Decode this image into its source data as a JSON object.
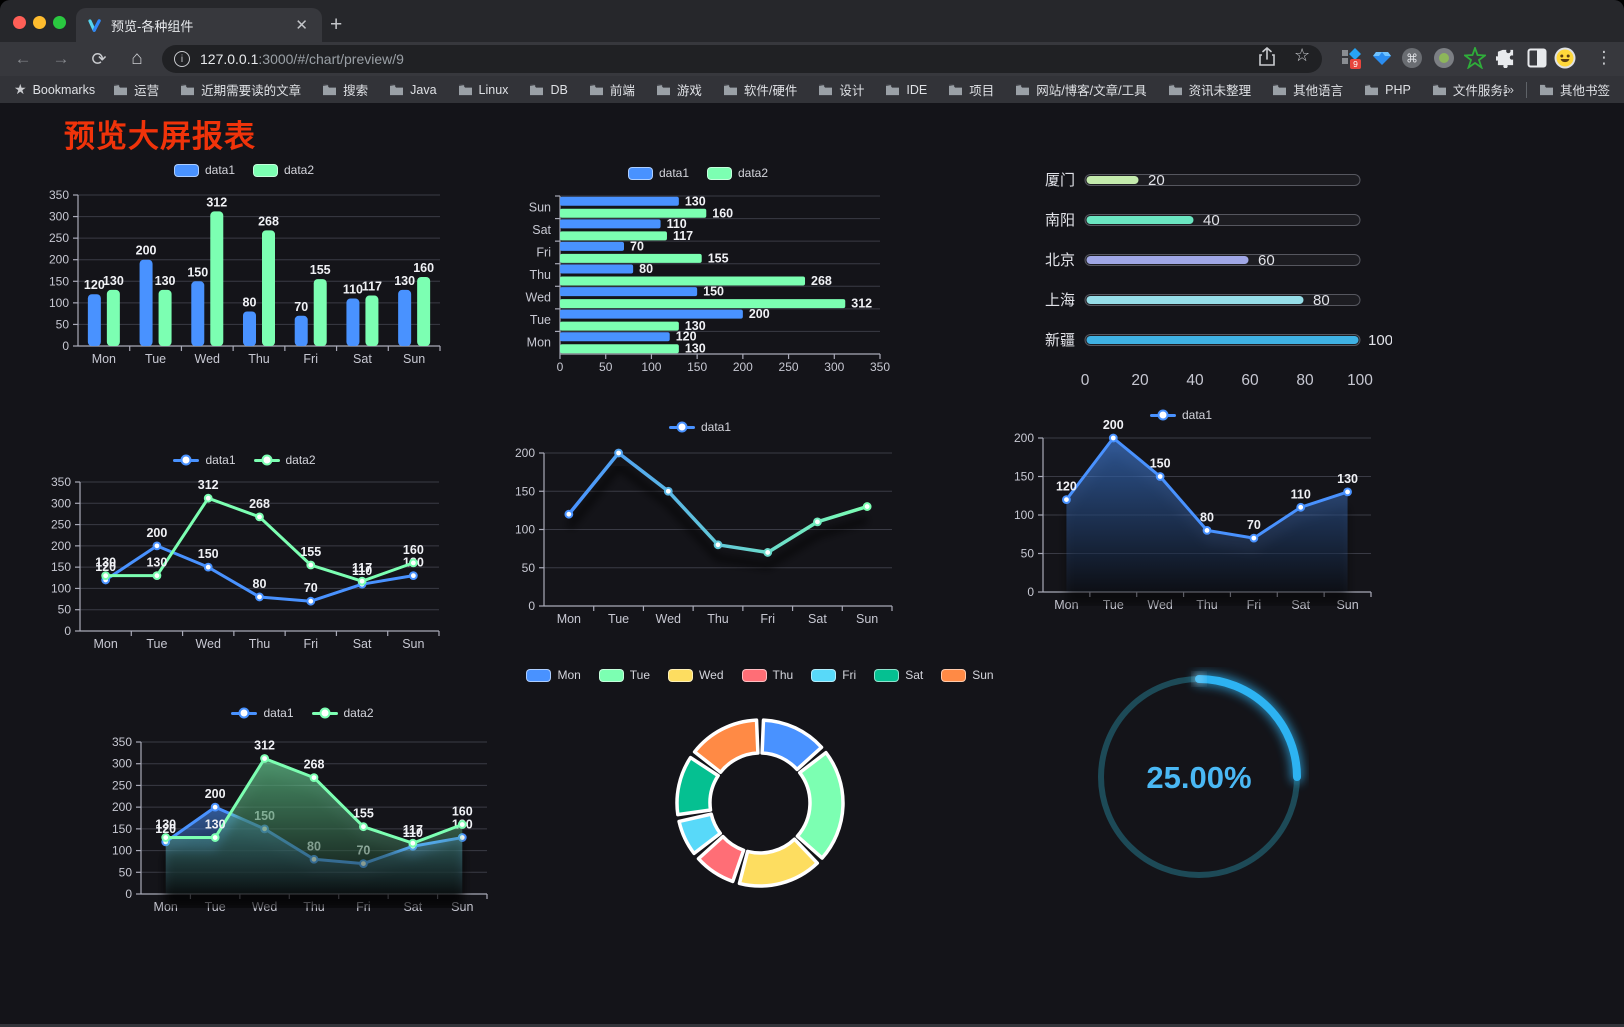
{
  "browser": {
    "tab_title": "预览-各种组件",
    "url_host": "127.0.0.1",
    "url_rest": ":3000/#/chart/preview/9",
    "bookmarks_label": "Bookmarks",
    "bookmarks": [
      "运营",
      "近期需要读的文章",
      "搜索",
      "Java",
      "Linux",
      "DB",
      "前端",
      "游戏",
      "软件/硬件",
      "设计",
      "IDE",
      "项目",
      "网站/博客/文章/工具",
      "资讯未整理",
      "其他语言",
      "PHP",
      "文件服务器"
    ],
    "overflow_chevron": "»",
    "other_bookmarks": "其他书签",
    "extension_badge": "9",
    "close_glyph": "✕",
    "plus_glyph": "+",
    "back_glyph": "←",
    "forward_glyph": "→",
    "reload_glyph": "⟳",
    "home_glyph": "⌂",
    "info_glyph": "i",
    "star_glyph": "☆",
    "bookmark_star_glyph": "★",
    "kebab_glyph": "⋮",
    "cmd_glyph": "⌘"
  },
  "page": {
    "title": "预览大屏报表",
    "title_color": "#f0330a"
  },
  "palette": {
    "axis": "#a9aab8",
    "grid": "#3a3b45",
    "tick_label": "#c7c8d2",
    "data_label": "#f0f1f5",
    "bg": "#141419"
  },
  "chart_data": [
    {
      "id": "bar-grouped",
      "type": "bar",
      "categories": [
        "Mon",
        "Tue",
        "Wed",
        "Thu",
        "Fri",
        "Sat",
        "Sun"
      ],
      "series": [
        {
          "name": "data1",
          "color": "#4992ff",
          "values": [
            120,
            200,
            150,
            80,
            70,
            110,
            130
          ]
        },
        {
          "name": "data2",
          "color": "#7cffb2",
          "values": [
            130,
            130,
            312,
            268,
            155,
            117,
            160
          ]
        }
      ],
      "ylim": [
        0,
        350
      ],
      "ystep": 50,
      "legend_position": "top",
      "labels": true,
      "grid": true
    },
    {
      "id": "hbar-grouped",
      "type": "hbar",
      "categories": [
        "Mon",
        "Tue",
        "Wed",
        "Thu",
        "Fri",
        "Sat",
        "Sun"
      ],
      "series": [
        {
          "name": "data1",
          "color": "#4992ff",
          "values": [
            120,
            200,
            150,
            80,
            70,
            110,
            130
          ]
        },
        {
          "name": "data2",
          "color": "#7cffb2",
          "values": [
            130,
            130,
            312,
            268,
            155,
            117,
            160
          ]
        }
      ],
      "xlim": [
        0,
        350
      ],
      "xstep": 50,
      "legend_position": "top",
      "labels": true
    },
    {
      "id": "progress-bars",
      "type": "progress",
      "items": [
        {
          "label": "厦门",
          "value": 20,
          "color": "#c4ebad"
        },
        {
          "label": "南阳",
          "value": 40,
          "color": "#6be6c1"
        },
        {
          "label": "北京",
          "value": 60,
          "color": "#a0a7e6"
        },
        {
          "label": "上海",
          "value": 80,
          "color": "#96dee8"
        },
        {
          "label": "新疆",
          "value": 100,
          "color": "#3fb1e3"
        }
      ],
      "xlim": [
        0,
        100
      ],
      "xticks": [
        0,
        20,
        40,
        60,
        80,
        100
      ]
    },
    {
      "id": "line-two-series",
      "type": "line",
      "categories": [
        "Mon",
        "Tue",
        "Wed",
        "Thu",
        "Fri",
        "Sat",
        "Sun"
      ],
      "series": [
        {
          "name": "data1",
          "color": "#4992ff",
          "values": [
            120,
            200,
            150,
            80,
            70,
            110,
            130
          ]
        },
        {
          "name": "data2",
          "color": "#7cffb2",
          "values": [
            130,
            130,
            312,
            268,
            155,
            117,
            160
          ]
        }
      ],
      "ylim": [
        0,
        350
      ],
      "ystep": 50,
      "labels": true,
      "area": false
    },
    {
      "id": "line-gradient",
      "type": "line-gradient",
      "categories": [
        "Mon",
        "Tue",
        "Wed",
        "Thu",
        "Fri",
        "Sat",
        "Sun"
      ],
      "series": [
        {
          "name": "data1",
          "gradient": [
            "#4992ff",
            "#7cffb2"
          ],
          "values": [
            120,
            200,
            150,
            80,
            70,
            110,
            130
          ]
        }
      ],
      "ylim": [
        0,
        200
      ],
      "ystep": 50,
      "labels": false
    },
    {
      "id": "area-single",
      "type": "line",
      "categories": [
        "Mon",
        "Tue",
        "Wed",
        "Thu",
        "Fri",
        "Sat",
        "Sun"
      ],
      "series": [
        {
          "name": "data1",
          "color": "#4992ff",
          "values": [
            120,
            200,
            150,
            80,
            70,
            110,
            130
          ]
        }
      ],
      "ylim": [
        0,
        200
      ],
      "ystep": 50,
      "labels": true,
      "area": true
    },
    {
      "id": "area-two-series",
      "type": "line",
      "categories": [
        "Mon",
        "Tue",
        "Wed",
        "Thu",
        "Fri",
        "Sat",
        "Sun"
      ],
      "series": [
        {
          "name": "data1",
          "color": "#4992ff",
          "values": [
            120,
            200,
            150,
            80,
            70,
            110,
            130
          ]
        },
        {
          "name": "data2",
          "color": "#7cffb2",
          "values": [
            130,
            130,
            312,
            268,
            155,
            117,
            160
          ]
        }
      ],
      "ylim": [
        0,
        350
      ],
      "ystep": 50,
      "labels": true,
      "area": true
    },
    {
      "id": "donut",
      "type": "pie",
      "items": [
        {
          "label": "Mon",
          "value": 120,
          "color": "#4992ff"
        },
        {
          "label": "Tue",
          "value": 200,
          "color": "#7cffb2"
        },
        {
          "label": "Wed",
          "value": 150,
          "color": "#fddd60"
        },
        {
          "label": "Thu",
          "value": 80,
          "color": "#ff6e76"
        },
        {
          "label": "Fri",
          "value": 70,
          "color": "#58d9f9"
        },
        {
          "label": "Sat",
          "value": 110,
          "color": "#05c091"
        },
        {
          "label": "Sun",
          "value": 130,
          "color": "#ff8a45"
        }
      ]
    },
    {
      "id": "gauge",
      "type": "gauge",
      "value_text": "25.00%",
      "percent": 25,
      "arc_color": "#2db3f2",
      "track_color": "#1d4a57",
      "text_color": "#4ab8f4"
    }
  ]
}
